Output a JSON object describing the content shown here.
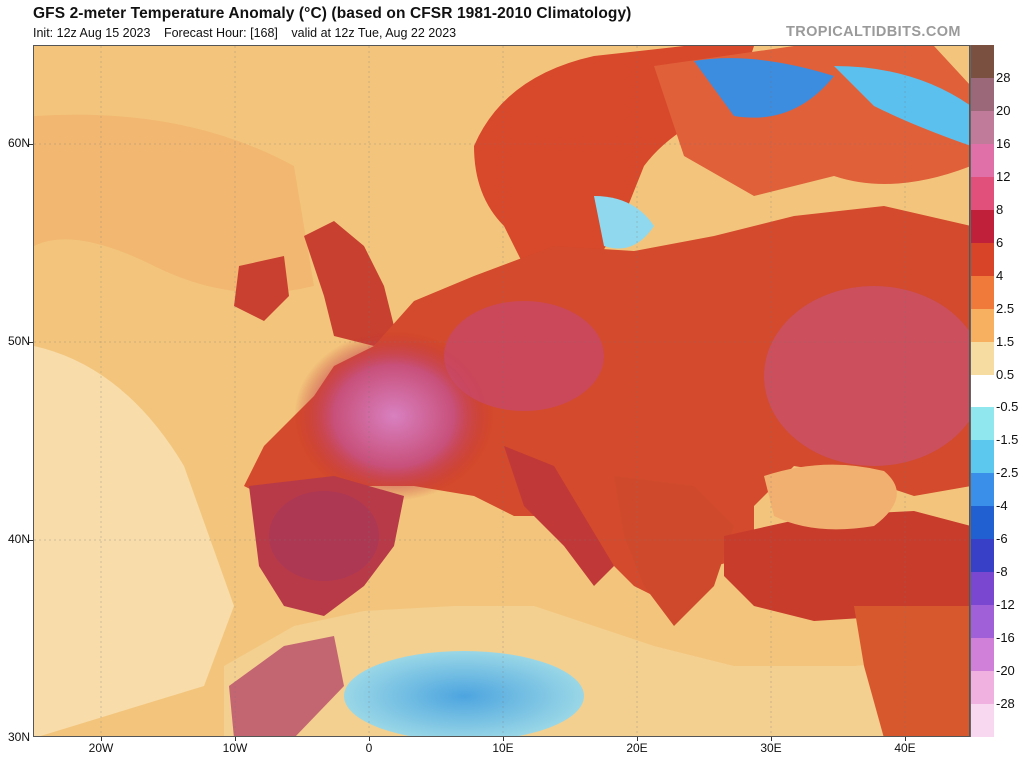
{
  "header": {
    "title": "GFS 2-meter Temperature Anomaly (°C) (based on CFSR 1981-2010 Climatology)",
    "init": "Init: 12z Aug 15 2023",
    "forecast_hour": "Forecast Hour: [168]",
    "valid": "valid at 12z Tue, Aug 22 2023",
    "brand": "TROPICALTIDBITS.COM"
  },
  "map": {
    "region": "Europe / North Africa",
    "projection": "lat-lon",
    "lon_range": [
      -25,
      45
    ],
    "lat_range": [
      30,
      65
    ],
    "lat_labels": [
      "60N",
      "50N",
      "40N",
      "30N"
    ],
    "lon_labels": [
      "20W",
      "10W",
      "0",
      "10E",
      "20E",
      "30E",
      "40E"
    ],
    "ocean_color": "#f3c57c",
    "land_base_color": "#d8502e",
    "hot_core_color": "#c84a7a"
  },
  "colorbar": {
    "labels": [
      "28",
      "20",
      "16",
      "12",
      "8",
      "6",
      "4",
      "2.5",
      "1.5",
      "0.5",
      "-0.5",
      "-1.5",
      "-2.5",
      "-4",
      "-6",
      "-8",
      "-12",
      "-16",
      "-20",
      "-28"
    ],
    "colors": [
      "#7a5040",
      "#9a6878",
      "#c07a9a",
      "#e070a8",
      "#e0507a",
      "#c0203a",
      "#d84428",
      "#f07a3a",
      "#f6b060",
      "#f6dca0",
      "#ffffff",
      "#90e8ee",
      "#5cc8ee",
      "#3a90e8",
      "#2060d0",
      "#3840c8",
      "#7a48d0",
      "#a060d8",
      "#d080d8",
      "#f0b0e0",
      "#f8d8f0"
    ]
  }
}
